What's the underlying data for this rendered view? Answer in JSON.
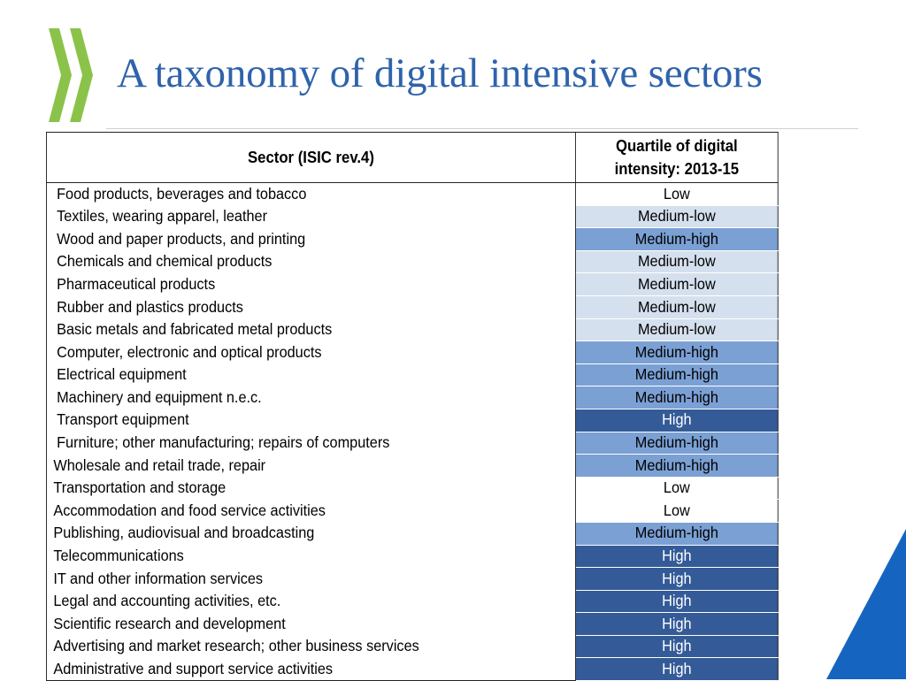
{
  "title": "A taxonomy of digital intensive sectors",
  "colors": {
    "title": "#2f63ab",
    "logo": "#8bc34a",
    "corner": "#1565c0",
    "q_low": "#ffffff",
    "q_medium_low": "#d5e0ee",
    "q_medium_high": "#7ba0d4",
    "q_high": "#345b97"
  },
  "table": {
    "header": {
      "sector": "Sector (ISIC rev.4)",
      "quartile": "Quartile of digital intensity: 2013-15"
    },
    "rows": [
      {
        "sector": "Food products, beverages and tobacco",
        "quartile": "Low"
      },
      {
        "sector": "Textiles, wearing apparel, leather",
        "quartile": "Medium-low"
      },
      {
        "sector": "Wood and paper products, and printing",
        "quartile": "Medium-high"
      },
      {
        "sector": "Chemicals and chemical products",
        "quartile": "Medium-low"
      },
      {
        "sector": "Pharmaceutical products",
        "quartile": "Medium-low"
      },
      {
        "sector": "Rubber and plastics products",
        "quartile": "Medium-low"
      },
      {
        "sector": "Basic metals and fabricated metal products",
        "quartile": "Medium-low"
      },
      {
        "sector": "Computer, electronic and optical products",
        "quartile": "Medium-high"
      },
      {
        "sector": "Electrical equipment",
        "quartile": "Medium-high"
      },
      {
        "sector": "Machinery and equipment n.e.c.",
        "quartile": "Medium-high"
      },
      {
        "sector": "Transport equipment",
        "quartile": "High"
      },
      {
        "sector": "Furniture; other manufacturing; repairs of   computers",
        "quartile": "Medium-high"
      },
      {
        "sector": "Wholesale and retail trade, repair",
        "quartile": "Medium-high"
      },
      {
        "sector": "Transportation and storage",
        "quartile": "Low"
      },
      {
        "sector": "Accommodation and food service activities",
        "quartile": "Low"
      },
      {
        "sector": "Publishing, audiovisual and broadcasting",
        "quartile": "Medium-high"
      },
      {
        "sector": "Telecommunications",
        "quartile": "High"
      },
      {
        "sector": "IT and other information services",
        "quartile": "High"
      },
      {
        "sector": "Legal and accounting activities, etc.",
        "quartile": "High"
      },
      {
        "sector": "Scientific research and development",
        "quartile": "High"
      },
      {
        "sector": "Advertising and market research; other business services",
        "quartile": "High"
      },
      {
        "sector": "Administrative and support service activities",
        "quartile": "High"
      }
    ]
  }
}
